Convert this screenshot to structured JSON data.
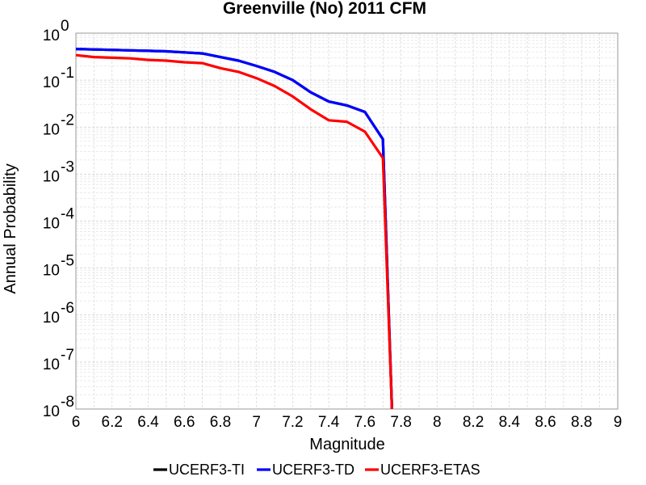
{
  "chart_data": {
    "type": "line",
    "title": "Greenville (No) 2011 CFM",
    "xlabel": "Magnitude",
    "ylabel": "Annual Probability",
    "xlim": [
      6,
      9
    ],
    "ylim": [
      1e-08,
      1
    ],
    "yscale": "log",
    "grid": true,
    "legend_position": "bottom",
    "x_ticks": [
      "6",
      "6.2",
      "6.4",
      "6.6",
      "6.8",
      "7",
      "7.2",
      "7.4",
      "7.6",
      "7.8",
      "8",
      "8.2",
      "8.4",
      "8.6",
      "8.8",
      "9"
    ],
    "y_ticks": [
      {
        "base": "10",
        "exp": "0"
      },
      {
        "base": "10",
        "exp": "-1"
      },
      {
        "base": "10",
        "exp": "-2"
      },
      {
        "base": "10",
        "exp": "-3"
      },
      {
        "base": "10",
        "exp": "-4"
      },
      {
        "base": "10",
        "exp": "-5"
      },
      {
        "base": "10",
        "exp": "-6"
      },
      {
        "base": "10",
        "exp": "-7"
      },
      {
        "base": "10",
        "exp": "-8"
      }
    ],
    "series": [
      {
        "name": "UCERF3-TI",
        "color": "#000000",
        "x": [
          6.0,
          6.1,
          6.2,
          6.3,
          6.4,
          6.5,
          6.6,
          6.7,
          6.8,
          6.9,
          7.0,
          7.1,
          7.2,
          7.3,
          7.4,
          7.5,
          7.6,
          7.7,
          7.75
        ],
        "y": [
          0.46,
          0.45,
          0.44,
          0.43,
          0.42,
          0.41,
          0.39,
          0.37,
          0.31,
          0.26,
          0.2,
          0.15,
          0.1,
          0.055,
          0.035,
          0.029,
          0.021,
          0.0055,
          1e-08
        ]
      },
      {
        "name": "UCERF3-TD",
        "color": "#0000ff",
        "x": [
          6.0,
          6.1,
          6.2,
          6.3,
          6.4,
          6.5,
          6.6,
          6.7,
          6.8,
          6.9,
          7.0,
          7.1,
          7.2,
          7.3,
          7.4,
          7.5,
          7.6,
          7.7,
          7.75
        ],
        "y": [
          0.46,
          0.45,
          0.44,
          0.43,
          0.42,
          0.41,
          0.39,
          0.37,
          0.31,
          0.26,
          0.2,
          0.15,
          0.1,
          0.055,
          0.035,
          0.029,
          0.021,
          0.0055,
          1e-08
        ]
      },
      {
        "name": "UCERF3-ETAS",
        "color": "#ff0000",
        "x": [
          6.0,
          6.1,
          6.2,
          6.3,
          6.4,
          6.5,
          6.6,
          6.7,
          6.8,
          6.9,
          7.0,
          7.1,
          7.2,
          7.3,
          7.4,
          7.5,
          7.6,
          7.7,
          7.75
        ],
        "y": [
          0.34,
          0.31,
          0.3,
          0.29,
          0.27,
          0.26,
          0.24,
          0.23,
          0.18,
          0.15,
          0.11,
          0.075,
          0.045,
          0.024,
          0.014,
          0.013,
          0.008,
          0.0022,
          1e-08
        ]
      }
    ]
  }
}
